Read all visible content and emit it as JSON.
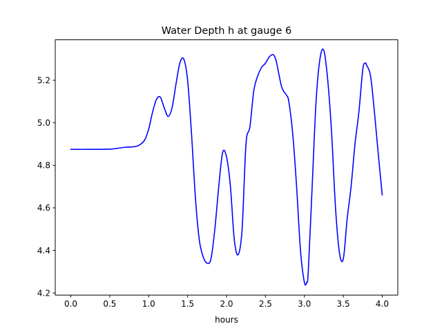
{
  "chart_data": {
    "type": "line",
    "title": "Water Depth h at gauge 6",
    "xlabel": "hours",
    "ylabel": "",
    "xlim": [
      -0.2,
      4.2
    ],
    "ylim": [
      4.19,
      5.39
    ],
    "grid": false,
    "legend": "none",
    "x_ticks": [
      0.0,
      0.5,
      1.0,
      1.5,
      2.0,
      2.5,
      3.0,
      3.5,
      4.0
    ],
    "x_tick_labels": [
      "0.0",
      "0.5",
      "1.0",
      "1.5",
      "2.0",
      "2.5",
      "3.0",
      "3.5",
      "4.0"
    ],
    "y_ticks": [
      4.2,
      4.4,
      4.6,
      4.8,
      5.0,
      5.2
    ],
    "y_tick_labels": [
      "4.2",
      "4.4",
      "4.6",
      "4.8",
      "5.0",
      "5.2"
    ],
    "series": [
      {
        "name": "",
        "color": "#0000ff",
        "x": [
          0.0,
          0.25,
          0.5,
          0.6,
          0.7,
          0.8,
          0.85,
          0.9,
          0.95,
          1.0,
          1.05,
          1.1,
          1.15,
          1.2,
          1.25,
          1.3,
          1.35,
          1.4,
          1.45,
          1.5,
          1.55,
          1.6,
          1.65,
          1.7,
          1.75,
          1.8,
          1.85,
          1.9,
          1.95,
          2.0,
          2.05,
          2.1,
          2.15,
          2.2,
          2.25,
          2.3,
          2.35,
          2.4,
          2.45,
          2.5,
          2.55,
          2.6,
          2.63,
          2.65,
          2.7,
          2.73,
          2.77,
          2.8,
          2.85,
          2.9,
          2.95,
          3.0,
          3.03,
          3.05,
          3.1,
          3.15,
          3.2,
          3.25,
          3.3,
          3.35,
          3.4,
          3.45,
          3.5,
          3.55,
          3.6,
          3.65,
          3.7,
          3.75,
          3.78,
          3.8,
          3.85,
          3.9,
          3.95,
          4.0
        ],
        "y": [
          4.875,
          4.875,
          4.876,
          4.88,
          4.885,
          4.887,
          4.89,
          4.9,
          4.92,
          4.97,
          5.05,
          5.11,
          5.12,
          5.07,
          5.03,
          5.07,
          5.18,
          5.28,
          5.3,
          5.2,
          4.95,
          4.65,
          4.45,
          4.37,
          4.34,
          4.36,
          4.5,
          4.7,
          4.86,
          4.84,
          4.7,
          4.45,
          4.38,
          4.5,
          4.9,
          4.98,
          5.15,
          5.22,
          5.26,
          5.28,
          5.31,
          5.32,
          5.3,
          5.27,
          5.18,
          5.15,
          5.13,
          5.1,
          4.95,
          4.7,
          4.4,
          4.25,
          4.25,
          4.3,
          4.7,
          5.1,
          5.3,
          5.34,
          5.2,
          4.95,
          4.6,
          4.39,
          4.36,
          4.55,
          4.7,
          4.9,
          5.05,
          5.25,
          5.28,
          5.27,
          5.22,
          5.05,
          4.85,
          4.66
        ]
      }
    ]
  }
}
